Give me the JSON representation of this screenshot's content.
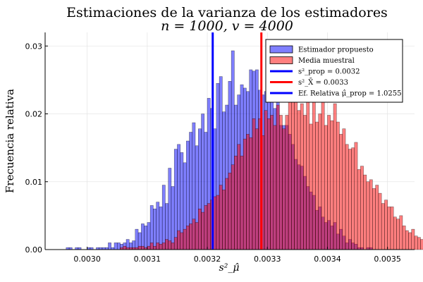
{
  "chart_data": {
    "type": "bar",
    "title": "Estimaciones de la varianza de los estimadores",
    "subtitle": "n = 1000, v = 4000",
    "xlabel": "s²_μ̂",
    "ylabel": "Frecuencia relativa",
    "xlim": [
      0.00293,
      0.003545
    ],
    "ylim": [
      0,
      0.032
    ],
    "x_ticks": [
      0.003,
      0.0031,
      0.0032,
      0.0033,
      0.0034,
      0.0035
    ],
    "x_tick_labels": [
      "0.0030",
      "0.0031",
      "0.0032",
      "0.0033",
      "0.0034",
      "0.0035"
    ],
    "y_ticks": [
      0,
      0.01,
      0.02,
      0.03
    ],
    "y_tick_labels": [
      "0.00",
      "0.01",
      "0.02",
      "0.03"
    ],
    "grid": true,
    "legend_position": "top-right",
    "bin_width": 5e-06,
    "series": [
      {
        "name": "Estimador propuesto",
        "kind": "histogram",
        "color": "#0000ff",
        "opacity": 0.5,
        "bin_start": 0.002965,
        "values": [
          0.0003,
          0.0003,
          0,
          0.0003,
          0.0003,
          0,
          0,
          0.0003,
          0.0003,
          0,
          0.0003,
          0.0003,
          0.0003,
          0.0003,
          0.001,
          0.0003,
          0.001,
          0.001,
          0.0008,
          0.001,
          0.0015,
          0.001,
          0.0013,
          0.003,
          0.0025,
          0.0038,
          0.0035,
          0.004,
          0.0065,
          0.006,
          0.007,
          0.0063,
          0.0095,
          0.0068,
          0.012,
          0.0093,
          0.0148,
          0.0155,
          0.0143,
          0.0128,
          0.016,
          0.0173,
          0.0187,
          0.0153,
          0.0178,
          0.02,
          0.0173,
          0.0223,
          0.0208,
          0.0178,
          0.0245,
          0.0255,
          0.0203,
          0.0213,
          0.0248,
          0.0293,
          0.0213,
          0.0228,
          0.0243,
          0.0238,
          0.0233,
          0.0265,
          0.0263,
          0.0265,
          0.0235,
          0.0228,
          0.0233,
          0.0248,
          0.0218,
          0.0208,
          0.0228,
          0.0183,
          0.0183,
          0.0183,
          0.017,
          0.0155,
          0.0133,
          0.0125,
          0.0123,
          0.0108,
          0.0093,
          0.0085,
          0.008,
          0.0058,
          0.0063,
          0.0048,
          0.004,
          0.0043,
          0.0035,
          0.004,
          0.0023,
          0.003,
          0.002,
          0.001,
          0.0015,
          0.001,
          0.0008,
          0.0003,
          0.0003,
          0,
          0.0003,
          0.0003
        ]
      },
      {
        "name": "Media muestral",
        "kind": "histogram",
        "color": "#ff0000",
        "opacity": 0.5,
        "bin_start": 0.003055,
        "values": [
          0.0003,
          0.0005,
          0.0003,
          0.0003,
          0.0003,
          0.0003,
          0.0005,
          0.0005,
          0.0003,
          0.0005,
          0.001,
          0.0005,
          0.001,
          0.0008,
          0.001,
          0.0015,
          0.0013,
          0.001,
          0.0018,
          0.0028,
          0.0025,
          0.003,
          0.0035,
          0.0038,
          0.0045,
          0.004,
          0.006,
          0.0055,
          0.0065,
          0.0068,
          0.0073,
          0.0078,
          0.008,
          0.0095,
          0.0088,
          0.0105,
          0.0113,
          0.0125,
          0.0138,
          0.0155,
          0.0138,
          0.0163,
          0.017,
          0.0165,
          0.0193,
          0.0178,
          0.0193,
          0.0168,
          0.0205,
          0.0193,
          0.0198,
          0.0183,
          0.0213,
          0.0198,
          0.0178,
          0.0198,
          0.0235,
          0.0218,
          0.0245,
          0.0205,
          0.0215,
          0.0198,
          0.0225,
          0.0185,
          0.0228,
          0.0188,
          0.02,
          0.0225,
          0.0183,
          0.0198,
          0.019,
          0.0215,
          0.0188,
          0.017,
          0.0178,
          0.0155,
          0.0148,
          0.015,
          0.0158,
          0.0118,
          0.0123,
          0.011,
          0.01,
          0.0103,
          0.009,
          0.0095,
          0.0083,
          0.0068,
          0.0073,
          0.0063,
          0.0063,
          0.0048,
          0.0045,
          0.005,
          0.0035,
          0.0028,
          0.0025,
          0.003,
          0.002,
          0.0018,
          0.0015,
          0.0018,
          0.0008,
          0.0008,
          0.001,
          0.0005,
          0.0003,
          0.0003,
          0.0003,
          0.0003
        ]
      },
      {
        "name": "s²_prop = 0.0032",
        "kind": "vline",
        "color": "#0000ff",
        "x": 0.003209
      },
      {
        "name": "s²_X̄ = 0.0033",
        "kind": "vline",
        "color": "#ff0000",
        "x": 0.00329
      },
      {
        "name": "Ef. Relativa μ̂_prop = 1.0255",
        "kind": "legend-only",
        "color": "#0000ff"
      }
    ]
  }
}
